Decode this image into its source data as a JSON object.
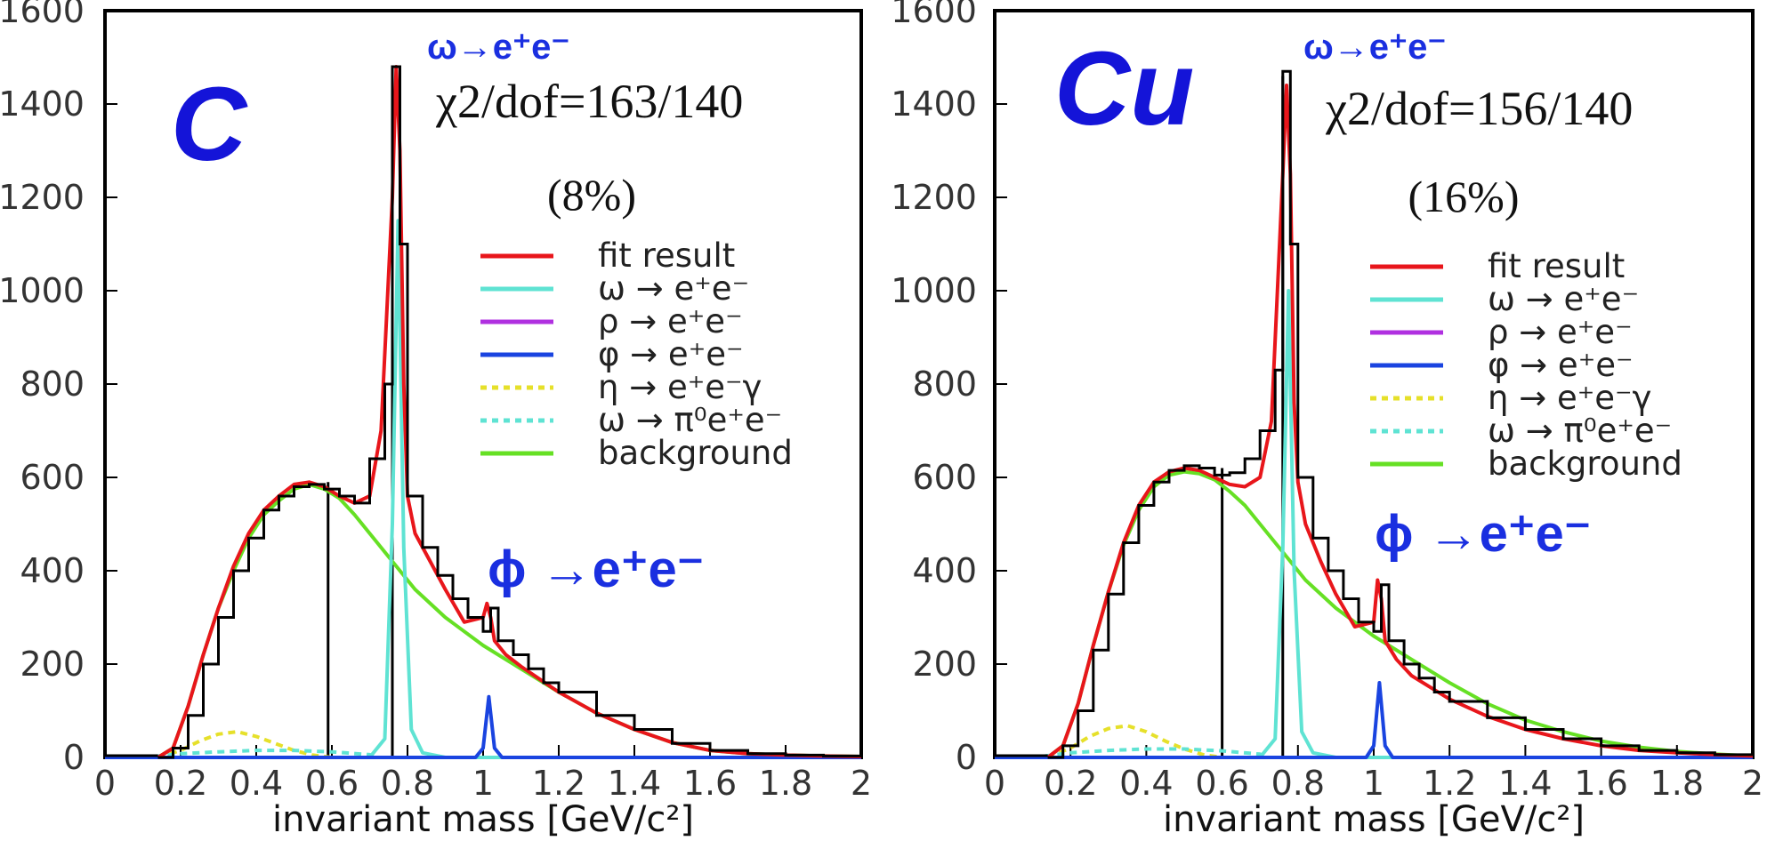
{
  "chart_data": [
    {
      "type": "line",
      "target_label": "C",
      "xlabel": "invariant mass [GeV/c²]",
      "xlim": [
        0,
        2
      ],
      "ylim": [
        0,
        1600
      ],
      "x_ticks": [
        0,
        0.2,
        0.4,
        0.6,
        0.8,
        1,
        1.2,
        1.4,
        1.6,
        1.8,
        2
      ],
      "x_tick_labels": [
        "0",
        "0.2",
        "0.4",
        "0.6",
        "0.8",
        "1",
        "1.2",
        "1.4",
        "1.6",
        "1.8",
        "2"
      ],
      "y_ticks": [
        0,
        200,
        400,
        600,
        800,
        1000,
        1200,
        1400,
        1600
      ],
      "y_tick_labels": [
        "0",
        "200",
        "400",
        "600",
        "800",
        "1000",
        "1200",
        "1400",
        "1600"
      ],
      "fit_quality": "χ2/dof=163/140",
      "fit_probability": "(8%)",
      "annotations": [
        "ω→e⁺e⁻",
        "ϕ →e⁺e⁻"
      ],
      "legend_position": "right",
      "legend": [
        {
          "label": "fit result",
          "color": "#e8161b",
          "dashed": false
        },
        {
          "label": "ω → e⁺e⁻",
          "color": "#5fe3d3",
          "dashed": false
        },
        {
          "label": "ρ → e⁺e⁻",
          "color": "#b030e0",
          "dashed": false
        },
        {
          "label": "φ → e⁺e⁻",
          "color": "#1a44e0",
          "dashed": false
        },
        {
          "label": "η → e⁺e⁻γ",
          "color": "#e6e02a",
          "dashed": true
        },
        {
          "label": "ω → π⁰e⁺e⁻",
          "color": "#5fe3d3",
          "dashed": true
        },
        {
          "label": "background",
          "color": "#66e024",
          "dashed": false
        }
      ],
      "markers": [
        0.59,
        0.76
      ],
      "data_x": [
        0.14,
        0.18,
        0.22,
        0.26,
        0.3,
        0.34,
        0.38,
        0.42,
        0.46,
        0.5,
        0.54,
        0.58,
        0.62,
        0.66,
        0.7,
        0.74,
        0.76,
        0.78,
        0.8,
        0.84,
        0.88,
        0.92,
        0.96,
        1.0,
        1.02,
        1.04,
        1.08,
        1.12,
        1.16,
        1.2,
        1.3,
        1.4,
        1.5,
        1.6,
        1.7,
        1.8,
        1.9,
        2.0
      ],
      "data_y": [
        0,
        20,
        90,
        200,
        300,
        400,
        470,
        530,
        560,
        580,
        585,
        575,
        560,
        545,
        640,
        800,
        1480,
        1100,
        560,
        450,
        390,
        340,
        300,
        270,
        320,
        250,
        220,
        190,
        160,
        140,
        90,
        60,
        30,
        15,
        8,
        5,
        3,
        2
      ],
      "series": [
        {
          "name": "fit result",
          "x": [
            0.14,
            0.18,
            0.22,
            0.26,
            0.3,
            0.34,
            0.38,
            0.42,
            0.46,
            0.5,
            0.54,
            0.58,
            0.62,
            0.66,
            0.7,
            0.73,
            0.76,
            0.77,
            0.78,
            0.79,
            0.8,
            0.82,
            0.86,
            0.9,
            0.95,
            1.0,
            1.01,
            1.02,
            1.03,
            1.06,
            1.1,
            1.2,
            1.3,
            1.4,
            1.5,
            1.6,
            1.7,
            1.8,
            1.9,
            2.0
          ],
          "y": [
            0,
            20,
            110,
            220,
            320,
            410,
            480,
            530,
            560,
            585,
            590,
            580,
            560,
            545,
            560,
            700,
            1200,
            1480,
            1300,
            800,
            560,
            480,
            420,
            360,
            290,
            300,
            330,
            300,
            250,
            220,
            195,
            140,
            95,
            60,
            32,
            15,
            8,
            5,
            3,
            2
          ]
        },
        {
          "name": "ω → e⁺e⁻",
          "x": [
            0,
            0.7,
            0.74,
            0.76,
            0.775,
            0.79,
            0.81,
            0.84,
            0.9,
            2.0
          ],
          "y": [
            0,
            0,
            40,
            500,
            1150,
            450,
            60,
            10,
            0,
            0
          ]
        },
        {
          "name": "ρ → e⁺e⁻",
          "x": [
            0,
            2.0
          ],
          "y": [
            0,
            0
          ]
        },
        {
          "name": "φ → e⁺e⁻",
          "x": [
            0,
            0.98,
            1.0,
            1.015,
            1.03,
            1.05,
            2.0
          ],
          "y": [
            0,
            0,
            20,
            130,
            20,
            0,
            0
          ]
        },
        {
          "name": "η → e⁺e⁻γ",
          "x": [
            0.14,
            0.2,
            0.25,
            0.3,
            0.35,
            0.4,
            0.45,
            0.5,
            0.55,
            0.6
          ],
          "y": [
            0,
            15,
            35,
            50,
            55,
            45,
            30,
            15,
            5,
            0
          ]
        },
        {
          "name": "ω → π⁰e⁺e⁻",
          "x": [
            0.1,
            0.2,
            0.3,
            0.4,
            0.5,
            0.6,
            0.7,
            0.72
          ],
          "y": [
            0,
            8,
            12,
            15,
            15,
            12,
            6,
            0
          ]
        },
        {
          "name": "background",
          "x": [
            0.14,
            0.18,
            0.22,
            0.26,
            0.3,
            0.34,
            0.38,
            0.42,
            0.46,
            0.5,
            0.54,
            0.58,
            0.62,
            0.66,
            0.7,
            0.76,
            0.82,
            0.9,
            1.0,
            1.1,
            1.2,
            1.3,
            1.4,
            1.5,
            1.6,
            1.7,
            1.8,
            1.9,
            2.0
          ],
          "y": [
            0,
            20,
            110,
            220,
            320,
            400,
            470,
            520,
            550,
            575,
            585,
            575,
            555,
            520,
            480,
            420,
            360,
            300,
            240,
            190,
            140,
            95,
            60,
            32,
            15,
            8,
            5,
            3,
            2
          ]
        }
      ]
    },
    {
      "type": "line",
      "target_label": "Cu",
      "xlabel": "invariant mass [GeV/c²]",
      "xlim": [
        0,
        2
      ],
      "ylim": [
        0,
        1600
      ],
      "x_ticks": [
        0,
        0.2,
        0.4,
        0.6,
        0.8,
        1,
        1.2,
        1.4,
        1.6,
        1.8,
        2
      ],
      "x_tick_labels": [
        "0",
        "0.2",
        "0.4",
        "0.6",
        "0.8",
        "1",
        "1.2",
        "1.4",
        "1.6",
        "1.8",
        "2"
      ],
      "y_ticks": [
        0,
        200,
        400,
        600,
        800,
        1000,
        1200,
        1400,
        1600
      ],
      "y_tick_labels": [
        "0",
        "200",
        "400",
        "600",
        "800",
        "1000",
        "1200",
        "1400",
        "1600"
      ],
      "fit_quality": "χ2/dof=156/140",
      "fit_probability": "(16%)",
      "annotations": [
        "ω→e⁺e⁻",
        "ϕ →e⁺e⁻"
      ],
      "legend_position": "right",
      "legend": [
        {
          "label": "fit result",
          "color": "#e8161b",
          "dashed": false
        },
        {
          "label": "ω → e⁺e⁻",
          "color": "#5fe3d3",
          "dashed": false
        },
        {
          "label": "ρ → e⁺e⁻",
          "color": "#b030e0",
          "dashed": false
        },
        {
          "label": "φ → e⁺e⁻",
          "color": "#1a44e0",
          "dashed": false
        },
        {
          "label": "η → e⁺e⁻γ",
          "color": "#e6e02a",
          "dashed": true
        },
        {
          "label": "ω → π⁰e⁺e⁻",
          "color": "#5fe3d3",
          "dashed": true
        },
        {
          "label": "background",
          "color": "#66e024",
          "dashed": false
        }
      ],
      "markers": [
        0.6,
        0.76
      ],
      "data_x": [
        0.14,
        0.18,
        0.22,
        0.26,
        0.3,
        0.34,
        0.38,
        0.42,
        0.46,
        0.5,
        0.54,
        0.58,
        0.62,
        0.66,
        0.7,
        0.74,
        0.76,
        0.78,
        0.8,
        0.84,
        0.88,
        0.92,
        0.96,
        1.0,
        1.02,
        1.04,
        1.08,
        1.12,
        1.16,
        1.2,
        1.3,
        1.4,
        1.5,
        1.6,
        1.7,
        1.8,
        1.9,
        2.0
      ],
      "data_y": [
        0,
        25,
        100,
        230,
        350,
        460,
        540,
        590,
        615,
        625,
        620,
        605,
        610,
        640,
        700,
        830,
        1470,
        1100,
        600,
        470,
        400,
        340,
        290,
        270,
        370,
        250,
        200,
        170,
        140,
        120,
        85,
        60,
        40,
        25,
        15,
        10,
        6,
        3
      ],
      "series": [
        {
          "name": "fit result",
          "x": [
            0.14,
            0.18,
            0.22,
            0.26,
            0.3,
            0.34,
            0.38,
            0.42,
            0.46,
            0.5,
            0.54,
            0.58,
            0.62,
            0.66,
            0.7,
            0.73,
            0.76,
            0.77,
            0.78,
            0.79,
            0.8,
            0.82,
            0.86,
            0.9,
            0.95,
            1.0,
            1.01,
            1.02,
            1.03,
            1.06,
            1.1,
            1.2,
            1.3,
            1.4,
            1.5,
            1.6,
            1.7,
            1.8,
            1.9,
            2.0
          ],
          "y": [
            0,
            25,
            115,
            240,
            355,
            460,
            540,
            590,
            612,
            620,
            615,
            600,
            585,
            580,
            600,
            720,
            1250,
            1440,
            1250,
            760,
            590,
            500,
            420,
            350,
            280,
            290,
            380,
            340,
            250,
            210,
            175,
            125,
            88,
            60,
            40,
            25,
            15,
            10,
            6,
            3
          ]
        },
        {
          "name": "ω → e⁺e⁻",
          "x": [
            0,
            0.7,
            0.74,
            0.76,
            0.775,
            0.79,
            0.81,
            0.84,
            0.9,
            2.0
          ],
          "y": [
            0,
            0,
            40,
            450,
            1000,
            400,
            55,
            10,
            0,
            0
          ]
        },
        {
          "name": "ρ → e⁺e⁻",
          "x": [
            0,
            2.0
          ],
          "y": [
            0,
            0
          ]
        },
        {
          "name": "φ → e⁺e⁻",
          "x": [
            0,
            0.98,
            1.0,
            1.015,
            1.03,
            1.05,
            2.0
          ],
          "y": [
            0,
            0,
            25,
            160,
            25,
            0,
            0
          ]
        },
        {
          "name": "η → e⁺e⁻γ",
          "x": [
            0.14,
            0.2,
            0.25,
            0.3,
            0.35,
            0.4,
            0.45,
            0.5,
            0.55,
            0.6
          ],
          "y": [
            0,
            20,
            45,
            62,
            68,
            55,
            35,
            18,
            6,
            0
          ]
        },
        {
          "name": "ω → π⁰e⁺e⁻",
          "x": [
            0.1,
            0.2,
            0.3,
            0.4,
            0.5,
            0.6,
            0.7,
            0.72
          ],
          "y": [
            0,
            10,
            15,
            18,
            18,
            14,
            7,
            0
          ]
        },
        {
          "name": "background",
          "x": [
            0.14,
            0.18,
            0.22,
            0.26,
            0.3,
            0.34,
            0.38,
            0.42,
            0.46,
            0.5,
            0.54,
            0.58,
            0.62,
            0.66,
            0.7,
            0.76,
            0.82,
            0.9,
            1.0,
            1.1,
            1.2,
            1.3,
            1.4,
            1.5,
            1.6,
            1.7,
            1.8,
            1.9,
            2.0
          ],
          "y": [
            0,
            25,
            115,
            240,
            355,
            455,
            530,
            580,
            605,
            612,
            608,
            595,
            570,
            540,
            500,
            440,
            380,
            320,
            260,
            210,
            160,
            115,
            80,
            55,
            35,
            22,
            13,
            7,
            3
          ]
        }
      ]
    }
  ]
}
